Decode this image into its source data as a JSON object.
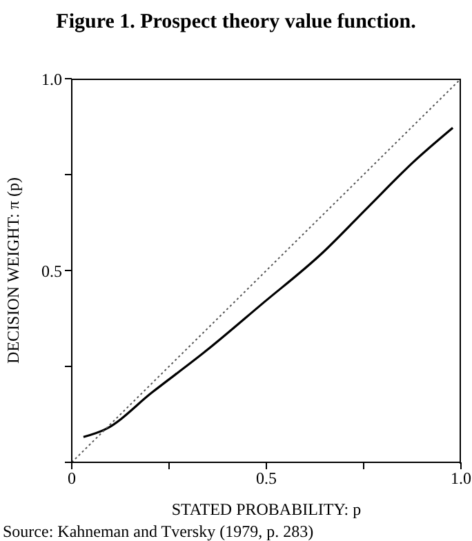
{
  "chart_data": {
    "type": "line",
    "title": "Figure 1. Prospect theory value function.",
    "xlabel": "STATED PROBABILITY: p",
    "ylabel": "DECISION WEIGHT: π (p)",
    "annotations": [
      "Source: Kahneman and Tversky (1979, p. 283)"
    ],
    "xlim": [
      0,
      1
    ],
    "ylim": [
      0,
      1
    ],
    "xticks": [
      0,
      {
        "value": 0.25,
        "label": null
      },
      0.5,
      {
        "value": 0.75,
        "label": null
      },
      {
        "value": 1,
        "label": "1.0"
      }
    ],
    "yticks": [
      {
        "value": 0,
        "label": null
      },
      {
        "value": 0.25,
        "label": null
      },
      0.5,
      {
        "value": 0.75,
        "label": null
      },
      {
        "value": 1,
        "label": "1.0"
      }
    ],
    "series": [
      {
        "color": "#000000",
        "line_style": "solid",
        "x": [
          0.03,
          0.088,
          0.206,
          0.348,
          0.489,
          0.643,
          0.761,
          0.879,
          0.979
        ],
        "values": [
          0.066,
          0.087,
          0.182,
          0.293,
          0.413,
          0.545,
          0.665,
          0.784,
          0.872
        ]
      },
      {
        "color": "#555555",
        "line_style": "dotted",
        "x": [
          0,
          1
        ],
        "values": [
          0,
          1
        ]
      }
    ]
  }
}
